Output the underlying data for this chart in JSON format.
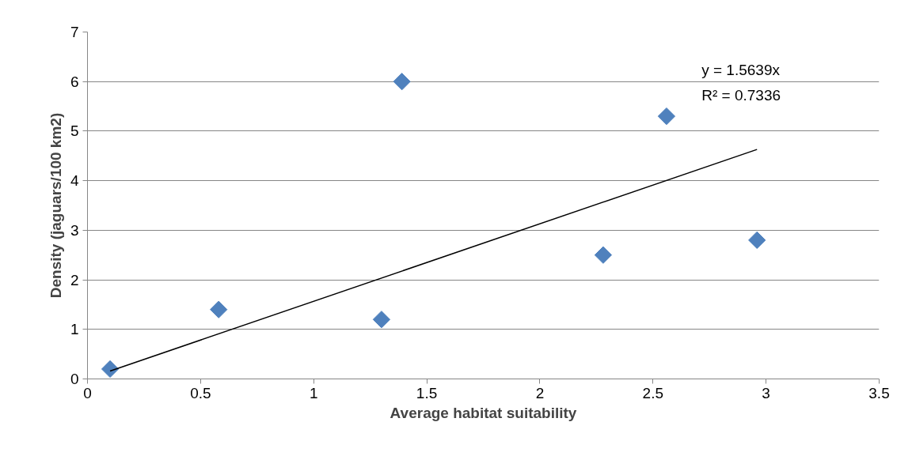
{
  "chart_data": {
    "type": "scatter",
    "xlabel": "Average habitat suitability",
    "ylabel": "Density (jaguars/100 km2)",
    "xlim": [
      0,
      3.5
    ],
    "xticks": [
      0,
      0.5,
      1,
      1.5,
      2,
      2.5,
      3,
      3.5
    ],
    "ylim": [
      0,
      7
    ],
    "yticks": [
      0,
      1,
      2,
      3,
      4,
      5,
      6,
      7
    ],
    "grid": "y",
    "marker": "diamond",
    "annotations": [
      "y = 1.5639x",
      "R² = 0.7336"
    ],
    "series": [
      {
        "color": "#4f81bd",
        "x": [
          0.1,
          0.58,
          1.3,
          1.39,
          2.28,
          2.56,
          2.96
        ],
        "values": [
          0.2,
          1.4,
          1.2,
          6.0,
          2.5,
          5.3,
          2.8
        ]
      },
      {
        "type": "line",
        "marker": "none",
        "color": "#000000",
        "x": [
          0.1,
          2.96
        ],
        "values": [
          0.16,
          4.63
        ]
      }
    ]
  }
}
